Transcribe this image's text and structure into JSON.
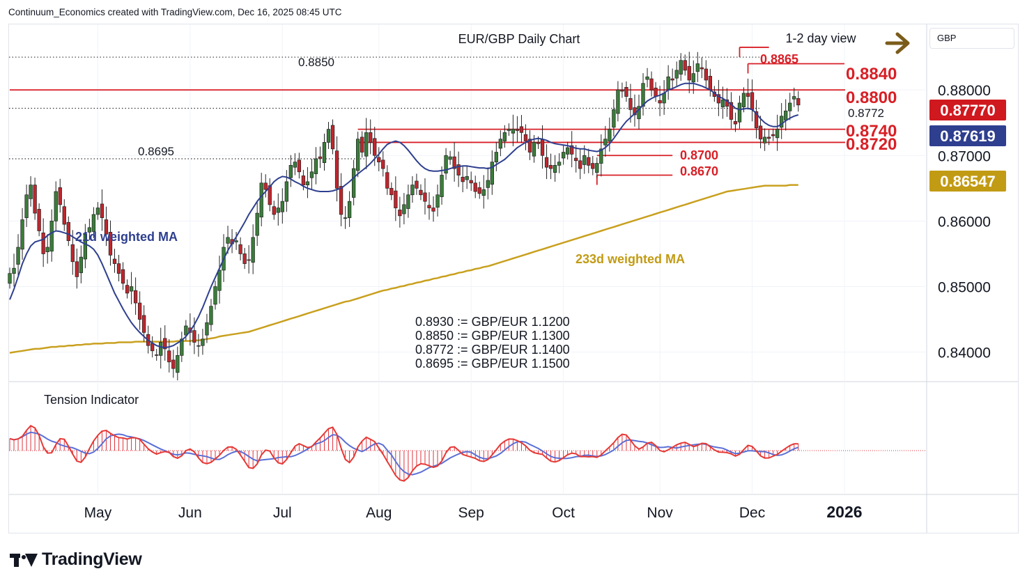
{
  "header": {
    "attribution": "Continuum_Economics created with TradingView.com, Dec 16, 2025 08:45 UTC"
  },
  "currency": "GBP",
  "brand": {
    "name": "TradingView"
  },
  "colors": {
    "candle_up": "#3a7d3a",
    "candle_down": "#c0262d",
    "ma21": "#2e3f8f",
    "ma233": "#c9a01e",
    "level_red": "#d81f26",
    "tension_bars": "#e0313b",
    "tension_fast": "#e53935",
    "tension_slow": "#5a6fd6",
    "arrow": "#7a5c1a",
    "label_current": "#d0181f",
    "label_ma21": "#2e3f8f",
    "label_ma233": "#c29b14"
  },
  "chart_data": {
    "type": "candlestick",
    "title": "EUR/GBP Daily Chart",
    "view": "1-2 day view",
    "view_direction": "right-arrow-icon",
    "y_axis": {
      "range": [
        0.8355,
        0.89
      ],
      "ticks": [
        "0.88000",
        "0.87000",
        "0.86000",
        "0.85000",
        "0.84000"
      ]
    },
    "x_axis": {
      "labels": [
        "May",
        "Jun",
        "Jul",
        "Aug",
        "Sep",
        "Oct",
        "Nov",
        "Dec",
        "2026"
      ]
    },
    "price_labels": [
      {
        "text": "0.87770",
        "kind": "last-price",
        "value": 0.8777
      },
      {
        "text": "0.87619",
        "kind": "ma21",
        "value": 0.87619
      },
      {
        "text": "0.86547",
        "kind": "ma233",
        "value": 0.86547
      }
    ],
    "levels": [
      {
        "value": 0.885,
        "label": "0.8850",
        "style": "dotted"
      },
      {
        "value": 0.8772,
        "label": "0.8772",
        "style": "dotted"
      },
      {
        "value": 0.8695,
        "label": "0.8695",
        "style": "dotted"
      },
      {
        "value": 0.8865,
        "label": "0.8865",
        "style": "marker"
      },
      {
        "value": 0.884,
        "label": "0.8840",
        "style": "marker"
      },
      {
        "value": 0.88,
        "label": "0.8800",
        "style": "solid"
      },
      {
        "value": 0.874,
        "label": "0.8740",
        "style": "solid"
      },
      {
        "value": 0.872,
        "label": "0.8720",
        "style": "solid"
      },
      {
        "value": 0.87,
        "label": "0.8700",
        "style": "marker"
      },
      {
        "value": 0.867,
        "label": "0.8670",
        "style": "marker"
      }
    ],
    "series": [
      {
        "name": "21d weighted MA"
      },
      {
        "name": "233d weighted MA"
      }
    ],
    "conversions": [
      "0.8930 := GBP/EUR 1.1200",
      "0.8850 := GBP/EUR 1.1300",
      "0.8772 := GBP/EUR 1.1400",
      "0.8695 := GBP/EUR 1.1500"
    ],
    "indicator": {
      "name": "Tension Indicator"
    },
    "close": [
      0.852,
      0.8528,
      0.856,
      0.8602,
      0.864,
      0.8655,
      0.8612,
      0.8585,
      0.855,
      0.856,
      0.86,
      0.8645,
      0.8625,
      0.8595,
      0.857,
      0.8538,
      0.8515,
      0.8545,
      0.858,
      0.859,
      0.861,
      0.862,
      0.8605,
      0.858,
      0.8548,
      0.8535,
      0.852,
      0.8505,
      0.849,
      0.85,
      0.8475,
      0.845,
      0.843,
      0.841,
      0.8402,
      0.8395,
      0.8415,
      0.8405,
      0.8385,
      0.8375,
      0.8395,
      0.842,
      0.844,
      0.843,
      0.8415,
      0.841,
      0.842,
      0.8445,
      0.847,
      0.85,
      0.8525,
      0.856,
      0.8575,
      0.8565,
      0.857,
      0.855,
      0.8535,
      0.854,
      0.8575,
      0.8612,
      0.8658,
      0.8648,
      0.8625,
      0.861,
      0.862,
      0.863,
      0.866,
      0.8685,
      0.869,
      0.8675,
      0.8655,
      0.866,
      0.8675,
      0.8695,
      0.8695,
      0.872,
      0.874,
      0.871,
      0.865,
      0.861,
      0.8605,
      0.863,
      0.868,
      0.8725,
      0.8705,
      0.8735,
      0.872,
      0.87,
      0.869,
      0.868,
      0.865,
      0.864,
      0.862,
      0.8608,
      0.8625,
      0.864,
      0.8655,
      0.865,
      0.864,
      0.863,
      0.862,
      0.8615,
      0.864,
      0.867,
      0.87,
      0.8698,
      0.868,
      0.867,
      0.866,
      0.8668,
      0.8658,
      0.8645,
      0.8642,
      0.8648,
      0.8662,
      0.869,
      0.8705,
      0.8725,
      0.8735,
      0.874,
      0.874,
      0.8738,
      0.8735,
      0.8722,
      0.8705,
      0.872,
      0.8718,
      0.87,
      0.8682,
      0.868,
      0.8685,
      0.869,
      0.8705,
      0.8712,
      0.8702,
      0.8692,
      0.868,
      0.87,
      0.8685,
      0.868,
      0.8688,
      0.871,
      0.8725,
      0.874,
      0.877,
      0.88,
      0.8798,
      0.879,
      0.877,
      0.8762,
      0.8775,
      0.881,
      0.882,
      0.88,
      0.879,
      0.878,
      0.8795,
      0.882,
      0.8815,
      0.883,
      0.8845,
      0.883,
      0.8815,
      0.8825,
      0.884,
      0.8832,
      0.8815,
      0.88,
      0.879,
      0.878,
      0.8785,
      0.8775,
      0.8755,
      0.8748,
      0.878,
      0.8795,
      0.879,
      0.877,
      0.8742,
      0.8725,
      0.8728,
      0.8726,
      0.873,
      0.874,
      0.876,
      0.8768,
      0.878,
      0.879,
      0.8777
    ],
    "ma21": [
      0.848,
      0.8496,
      0.8515,
      0.8535,
      0.855,
      0.8562,
      0.8568,
      0.857,
      0.8572,
      0.8578,
      0.8582,
      0.8585,
      0.8584,
      0.8582,
      0.858,
      0.8576,
      0.8572,
      0.8568,
      0.8565,
      0.8562,
      0.8557,
      0.8548,
      0.8535,
      0.852,
      0.8505,
      0.849,
      0.8478,
      0.8466,
      0.8455,
      0.8445,
      0.8437,
      0.843,
      0.8424,
      0.8418,
      0.8414,
      0.841,
      0.8408,
      0.8407,
      0.8408,
      0.841,
      0.8414,
      0.8418,
      0.8424,
      0.8432,
      0.8442,
      0.8454,
      0.8468,
      0.8484,
      0.85,
      0.8514,
      0.8528,
      0.8542,
      0.8555,
      0.8566,
      0.8576,
      0.8587,
      0.8598,
      0.861,
      0.862,
      0.863,
      0.8638,
      0.8645,
      0.8652,
      0.866,
      0.8665,
      0.8668,
      0.8667,
      0.8664,
      0.866,
      0.8657,
      0.8653,
      0.865,
      0.8648,
      0.8646,
      0.8645,
      0.8645,
      0.8645,
      0.8646,
      0.8648,
      0.865,
      0.8655,
      0.866,
      0.8666,
      0.8672,
      0.8677,
      0.8682,
      0.8688,
      0.8695,
      0.8702,
      0.871,
      0.8717,
      0.872,
      0.8722,
      0.872,
      0.8715,
      0.8708,
      0.87,
      0.8692,
      0.8685,
      0.868,
      0.8677,
      0.8676,
      0.8676,
      0.8677,
      0.8678,
      0.868,
      0.8682,
      0.8683,
      0.8684,
      0.8684,
      0.8683,
      0.8682,
      0.8681,
      0.8681,
      0.868,
      0.8682,
      0.8686,
      0.869,
      0.8694,
      0.87,
      0.8706,
      0.8712,
      0.8716,
      0.872,
      0.8723,
      0.8725,
      0.8726,
      0.8725,
      0.8723,
      0.872,
      0.8718,
      0.8717,
      0.8716,
      0.8715,
      0.8713,
      0.8711,
      0.871,
      0.871,
      0.8708,
      0.8707,
      0.8706,
      0.8708,
      0.8712,
      0.8718,
      0.8726,
      0.8735,
      0.8744,
      0.8752,
      0.8758,
      0.8764,
      0.877,
      0.8777,
      0.8783,
      0.8787,
      0.879,
      0.8792,
      0.8795,
      0.88,
      0.8802,
      0.8805,
      0.8808,
      0.881,
      0.881,
      0.881,
      0.8808,
      0.8806,
      0.8803,
      0.88,
      0.8795,
      0.879,
      0.8787,
      0.8783,
      0.8778,
      0.8772,
      0.877,
      0.8771,
      0.8772,
      0.877,
      0.8764,
      0.8756,
      0.875,
      0.8746,
      0.8744,
      0.8744,
      0.8748,
      0.8753,
      0.8757,
      0.876,
      0.8762
    ],
    "ma233": [
      0.8399,
      0.84,
      0.8401,
      0.8402,
      0.8403,
      0.8404,
      0.8405,
      0.8405,
      0.8406,
      0.8407,
      0.8408,
      0.8408,
      0.8409,
      0.8409,
      0.841,
      0.841,
      0.8411,
      0.8411,
      0.8412,
      0.8412,
      0.8413,
      0.8413,
      0.8413,
      0.8414,
      0.8414,
      0.8414,
      0.8415,
      0.8415,
      0.8415,
      0.8415,
      0.8416,
      0.8416,
      0.8416,
      0.8416,
      0.8416,
      0.8416,
      0.8416,
      0.8416,
      0.8416,
      0.8416,
      0.8417,
      0.8417,
      0.8417,
      0.8417,
      0.8418,
      0.8418,
      0.8419,
      0.842,
      0.8421,
      0.8422,
      0.8424,
      0.8425,
      0.8426,
      0.8427,
      0.8428,
      0.8429,
      0.843,
      0.8431,
      0.8433,
      0.8435,
      0.8437,
      0.8439,
      0.8441,
      0.8443,
      0.8445,
      0.8447,
      0.8449,
      0.8451,
      0.8453,
      0.8455,
      0.8457,
      0.8459,
      0.8461,
      0.8463,
      0.8465,
      0.8467,
      0.8469,
      0.8471,
      0.8473,
      0.8475,
      0.8477,
      0.8478,
      0.848,
      0.8482,
      0.8484,
      0.8486,
      0.8488,
      0.849,
      0.8492,
      0.8494,
      0.8495,
      0.8497,
      0.8498,
      0.85,
      0.8501,
      0.8503,
      0.8504,
      0.8506,
      0.8507,
      0.8509,
      0.851,
      0.8512,
      0.8513,
      0.8515,
      0.8516,
      0.8518,
      0.8519,
      0.8521,
      0.8522,
      0.8524,
      0.8525,
      0.8527,
      0.8528,
      0.853,
      0.8531,
      0.8533,
      0.8535,
      0.8537,
      0.8539,
      0.8541,
      0.8543,
      0.8545,
      0.8547,
      0.8549,
      0.8551,
      0.8553,
      0.8555,
      0.8557,
      0.8559,
      0.8561,
      0.8563,
      0.8565,
      0.8567,
      0.8569,
      0.8571,
      0.8573,
      0.8575,
      0.8577,
      0.8579,
      0.8581,
      0.8583,
      0.8585,
      0.8587,
      0.8589,
      0.8591,
      0.8593,
      0.8595,
      0.8597,
      0.8599,
      0.8601,
      0.8603,
      0.8605,
      0.8607,
      0.8609,
      0.8611,
      0.8613,
      0.8615,
      0.8617,
      0.8619,
      0.8621,
      0.8623,
      0.8625,
      0.8627,
      0.8629,
      0.8631,
      0.8633,
      0.8635,
      0.8637,
      0.8639,
      0.8641,
      0.8643,
      0.8645,
      0.8646,
      0.8647,
      0.8648,
      0.8649,
      0.865,
      0.8651,
      0.8652,
      0.8653,
      0.8654,
      0.8654,
      0.8654,
      0.8654,
      0.8654,
      0.8654,
      0.8655,
      0.8655,
      0.8655
    ]
  }
}
